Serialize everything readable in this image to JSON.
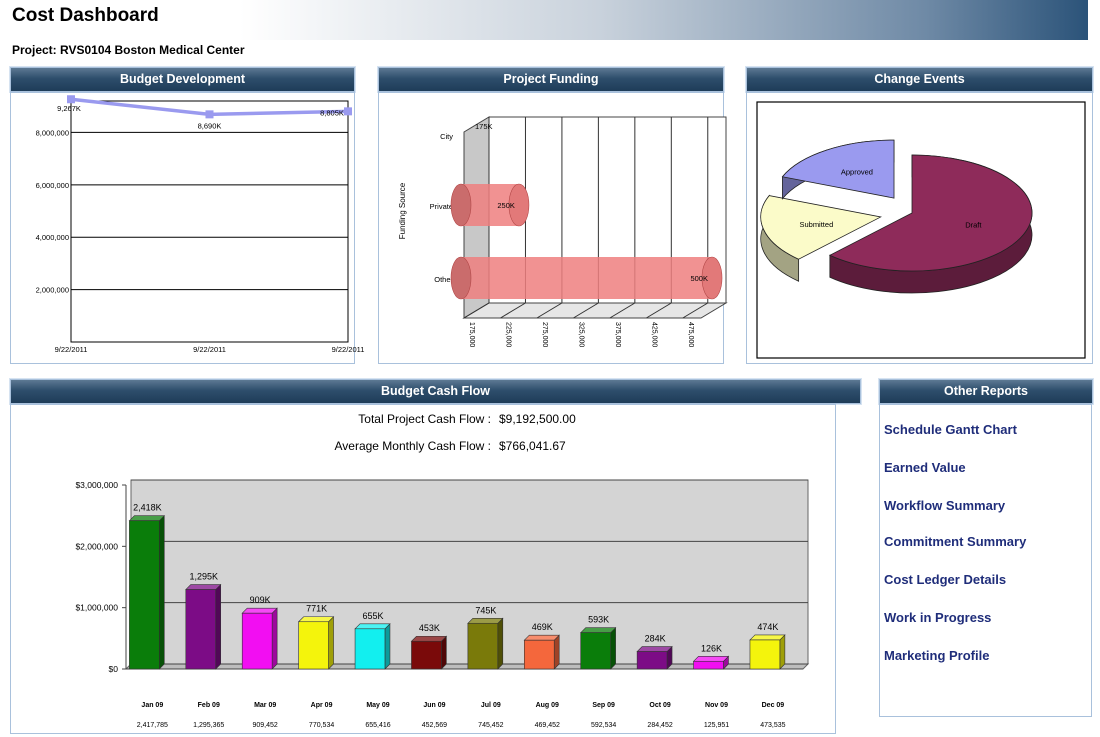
{
  "page": {
    "title": "Cost Dashboard",
    "project": "Project: RVS0104 Boston Medical Center"
  },
  "panels": {
    "budget_development": "Budget Development",
    "project_funding": "Project Funding",
    "change_events": "Change Events",
    "budget_cash_flow": "Budget Cash Flow",
    "other_reports": "Other Reports"
  },
  "cash_flow_summary": {
    "total_label": "Total Project Cash Flow :",
    "total_value": "$9,192,500.00",
    "average_label": "Average Monthly Cash Flow :",
    "average_value": "$766,041.67"
  },
  "other_reports": [
    "Schedule Gantt Chart",
    "Earned Value",
    "Workflow Summary",
    "Commitment Summary",
    "Cost Ledger Details",
    "Work in Progress",
    "Marketing Profile"
  ],
  "chart_data": [
    {
      "id": "budget_development",
      "type": "line",
      "x": [
        "9/22/2011",
        "9/22/2011",
        "9/22/2011"
      ],
      "values": [
        9267000,
        8690000,
        8805000
      ],
      "data_labels": [
        "9,267K",
        "8,690K",
        "8,805K"
      ],
      "ytick_labels": [
        "2,000,000",
        "4,000,000",
        "6,000,000",
        "8,000,000"
      ],
      "yticks": [
        2000000,
        4000000,
        6000000,
        8000000
      ],
      "ylim": [
        0,
        9200000
      ],
      "grid": true,
      "color": "#9a9aef"
    },
    {
      "id": "project_funding",
      "type": "bar",
      "orientation": "horizontal",
      "categories": [
        "City",
        "Private",
        "Other"
      ],
      "values": [
        175000,
        250000,
        500000
      ],
      "data_labels": [
        "175K",
        "250K",
        "500K"
      ],
      "ylabel": "Funding Source",
      "xtick_labels": [
        "175,000",
        "225,000",
        "275,000",
        "325,000",
        "375,000",
        "425,000",
        "475,000"
      ],
      "xlim": [
        175000,
        500000
      ],
      "color": "#ee7f7f",
      "grid": true
    },
    {
      "id": "change_events",
      "type": "pie",
      "slices": [
        {
          "label": "Draft",
          "value": 62,
          "color": "#8e2b5a"
        },
        {
          "label": "Submitted",
          "value": 19,
          "color": "#fbfbc9"
        },
        {
          "label": "Approved",
          "value": 19,
          "color": "#9a9aef"
        }
      ]
    },
    {
      "id": "budget_cash_flow",
      "type": "bar",
      "categories": [
        "Jan 09",
        "Feb 09",
        "Mar 09",
        "Apr 09",
        "May 09",
        "Jun 09",
        "Jul 09",
        "Aug 09",
        "Sep 09",
        "Oct 09",
        "Nov 09",
        "Dec 09"
      ],
      "values": [
        2417785,
        1295365,
        909452,
        770534,
        655416,
        452569,
        745452,
        469452,
        592534,
        284452,
        125951,
        473535
      ],
      "data_labels": [
        "2,418K",
        "1,295K",
        "909K",
        "771K",
        "655K",
        "453K",
        "745K",
        "469K",
        "593K",
        "284K",
        "126K",
        "474K"
      ],
      "value_labels": [
        "2,417,785",
        "1,295,365",
        "909,452",
        "770,534",
        "655,416",
        "452,569",
        "745,452",
        "469,452",
        "592,534",
        "284,452",
        "125,951",
        "473,535"
      ],
      "colors": [
        "#0a7d0a",
        "#7c0c86",
        "#f20ef2",
        "#f4f40c",
        "#12efef",
        "#7a0a0a",
        "#7a7a0a",
        "#f4673c",
        "#0a7d0a",
        "#7c0c86",
        "#f20ef2",
        "#f4f40c"
      ],
      "ytick_labels": [
        "$0",
        "$1,000,000",
        "$2,000,000",
        "$3,000,000"
      ],
      "yticks": [
        0,
        1000000,
        2000000,
        3000000
      ],
      "ylim": [
        0,
        3000000
      ],
      "grid": true
    }
  ]
}
